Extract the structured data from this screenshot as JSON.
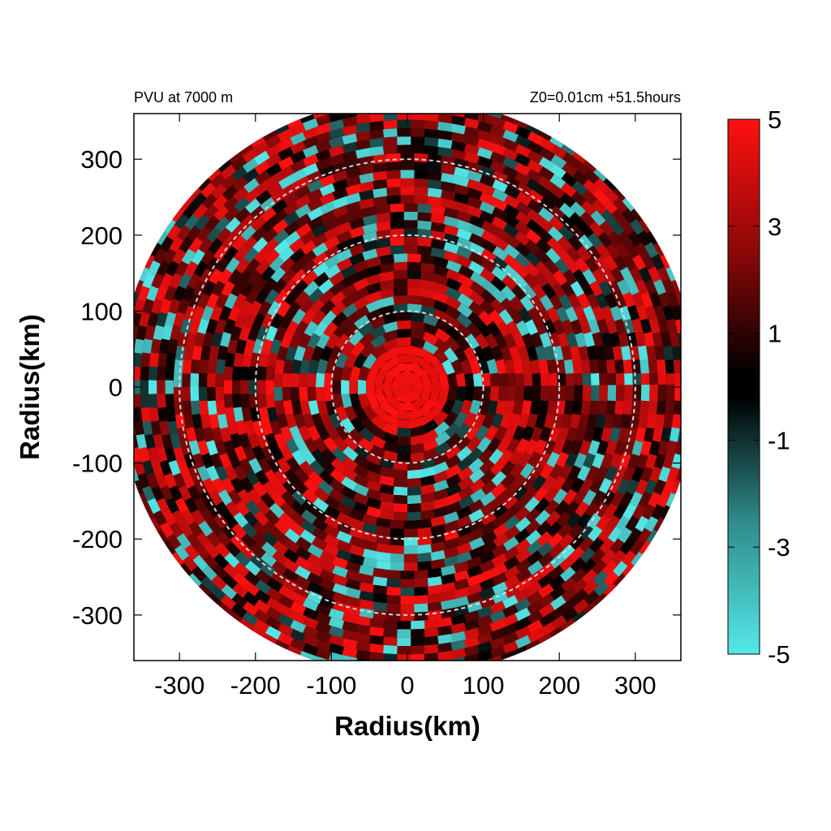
{
  "chart_data": {
    "type": "heatmap",
    "title_left": "PVU at  7000 m",
    "title_right": "Z0=0.01cm  +51.5hours",
    "xlabel": "Radius(km)",
    "ylabel": "Radius(km)",
    "xlim": [
      -360,
      360
    ],
    "ylim": [
      -360,
      360
    ],
    "x_ticks": [
      -300,
      -200,
      -100,
      0,
      100,
      200,
      300
    ],
    "y_ticks": [
      300,
      200,
      100,
      0,
      -100,
      -200,
      -300
    ],
    "range_rings_km": [
      100,
      200,
      300
    ],
    "data_domain_radius_km": 380,
    "colorbar": {
      "min": -5,
      "max": 5,
      "ticks": [
        5,
        3,
        1,
        -1,
        -3,
        -5
      ],
      "colors": [
        "#55e8e8",
        "#000000",
        "#ff1010"
      ]
    },
    "field_description_values": {
      "core_radius_km": 60,
      "core_value": 5
    }
  }
}
